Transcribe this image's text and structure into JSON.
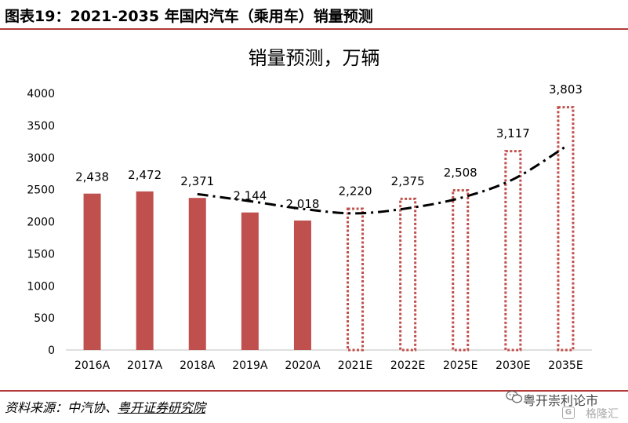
{
  "header": {
    "title": "图表19：2021-2035 年国内汽车（乘用车）销量预测"
  },
  "chart_data": {
    "type": "bar",
    "title": "销量预测，万辆",
    "categories": [
      "2016A",
      "2017A",
      "2018A",
      "2019A",
      "2020A",
      "2021E",
      "2022E",
      "2025E",
      "2030E",
      "2035E"
    ],
    "values": [
      2438,
      2472,
      2371,
      2144,
      2018,
      2220,
      2375,
      2508,
      3117,
      3803
    ],
    "value_labels": [
      "2,438",
      "2,472",
      "2,371",
      "2,144",
      "2,018",
      "2,220",
      "2,375",
      "2,508",
      "3,117",
      "3,803"
    ],
    "bar_style": [
      "actual",
      "actual",
      "actual",
      "actual",
      "actual",
      "forecast",
      "forecast",
      "forecast",
      "forecast",
      "forecast"
    ],
    "trend": {
      "style": "dash-dot",
      "categories": [
        "2018A",
        "2019A",
        "2020A",
        "2021E",
        "2022E",
        "2025E",
        "2030E",
        "2035E"
      ],
      "values": [
        2430,
        2320,
        2200,
        2130,
        2210,
        2370,
        2660,
        3170
      ]
    },
    "ylim": [
      0,
      4000
    ],
    "yticks": [
      0,
      500,
      1000,
      1500,
      2000,
      2500,
      3000,
      3500,
      4000
    ],
    "grid": false,
    "legend": "none",
    "colors": {
      "actual": "#c0504d",
      "forecast": "#c0504d",
      "trend": "#000000"
    }
  },
  "footer": {
    "source_prefix": "资料来源：中汽协、",
    "source_org": "粤开证券研究院"
  },
  "watermark": {
    "line1": "粤开崇利论市",
    "line2": "格隆汇",
    "logo": "G"
  }
}
